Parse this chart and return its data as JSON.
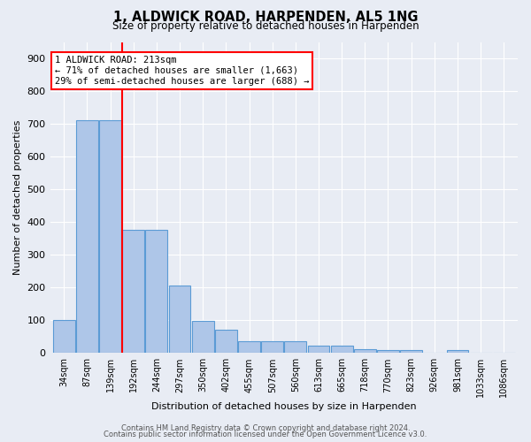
{
  "title": "1, ALDWICK ROAD, HARPENDEN, AL5 1NG",
  "subtitle": "Size of property relative to detached houses in Harpenden",
  "xlabel": "Distribution of detached houses by size in Harpenden",
  "ylabel": "Number of detached properties",
  "bin_labels": [
    "34sqm",
    "87sqm",
    "139sqm",
    "192sqm",
    "244sqm",
    "297sqm",
    "350sqm",
    "402sqm",
    "455sqm",
    "507sqm",
    "560sqm",
    "613sqm",
    "665sqm",
    "718sqm",
    "770sqm",
    "823sqm",
    "926sqm",
    "981sqm",
    "1033sqm",
    "1086sqm"
  ],
  "bar_heights": [
    100,
    710,
    710,
    375,
    375,
    207,
    97,
    72,
    35,
    35,
    35,
    22,
    22,
    12,
    10,
    10,
    0,
    10,
    0,
    0
  ],
  "bar_color": "#aec6e8",
  "bar_edge_color": "#5b9bd5",
  "ref_line_color": "red",
  "annotation_box_color": "white",
  "annotation_box_edge_color": "red",
  "background_color": "#e8ecf4",
  "ylim": [
    0,
    950
  ],
  "yticks": [
    0,
    100,
    200,
    300,
    400,
    500,
    600,
    700,
    800,
    900
  ],
  "footer1": "Contains HM Land Registry data © Crown copyright and database right 2024.",
  "footer2": "Contains public sector information licensed under the Open Government Licence v3.0."
}
